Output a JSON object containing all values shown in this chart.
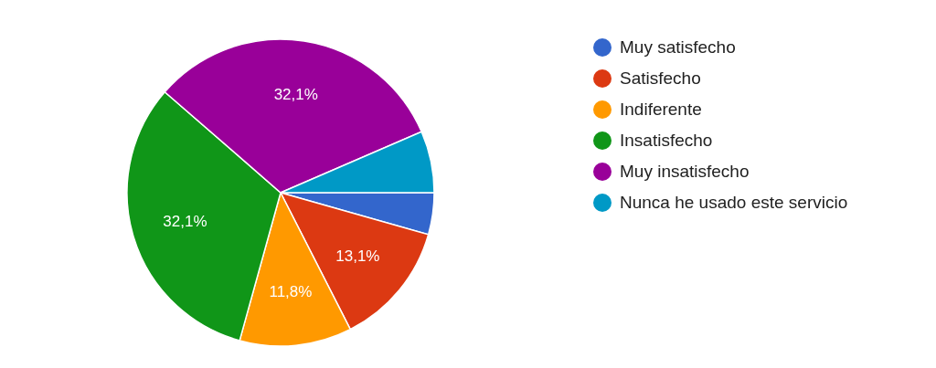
{
  "chart_data": {
    "type": "pie",
    "categories": [
      "Muy satisfecho",
      "Satisfecho",
      "Indiferente",
      "Insatisfecho",
      "Muy insatisfecho",
      "Nunca he usado este servicio"
    ],
    "values": [
      4.4,
      13.1,
      11.8,
      32.1,
      32.1,
      6.5
    ],
    "colors": [
      "#3366cc",
      "#dc3912",
      "#ff9900",
      "#109618",
      "#990099",
      "#0099c6"
    ],
    "value_labels": [
      null,
      "13,1%",
      "11,8%",
      "32,1%",
      "32,1%",
      null
    ],
    "legend": "right"
  }
}
